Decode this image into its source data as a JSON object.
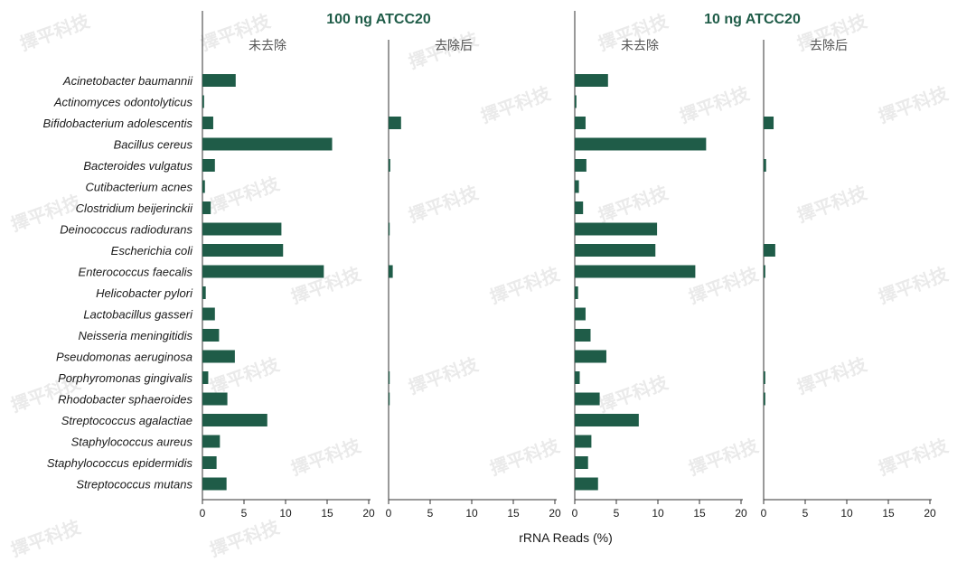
{
  "chart_data": {
    "type": "bar",
    "orientation": "horizontal",
    "xlabel": "rRNA Reads (%)",
    "xlim": [
      0,
      20
    ],
    "xticks": [
      0,
      5,
      10,
      15,
      20
    ],
    "bar_color": "#1f5c48",
    "groups": [
      {
        "title": "100 ng ATCC20",
        "title_color": "#1f5c48"
      },
      {
        "title": "10 ng ATCC20",
        "title_color": "#1f5c48"
      }
    ],
    "categories": [
      "Acinetobacter baumannii",
      "Actinomyces odontolyticus",
      "Bifidobacterium adolescentis",
      "Bacillus cereus",
      "Bacteroides vulgatus",
      "Cutibacterium acnes",
      "Clostridium beijerinckii",
      "Deinococcus radiodurans",
      "Escherichia coli",
      "Enterococcus faecalis",
      "Helicobacter pylori",
      "Lactobacillus gasseri",
      "Neisseria meningitidis",
      "Pseudomonas aeruginosa",
      "Porphyromonas gingivalis",
      "Rhodobacter sphaeroides",
      "Streptococcus agalactiae",
      "Staphylococcus aureus",
      "Staphylococcus epidermidis",
      "Streptococcus mutans"
    ],
    "panels": [
      {
        "group": 0,
        "title": "未去除",
        "values": [
          4.0,
          0.2,
          1.3,
          15.6,
          1.5,
          0.3,
          1.0,
          9.5,
          9.7,
          14.6,
          0.4,
          1.5,
          2.0,
          3.9,
          0.7,
          3.0,
          7.8,
          2.1,
          1.7,
          2.9
        ]
      },
      {
        "group": 0,
        "title": "去除后",
        "values": [
          0,
          0,
          1.5,
          0,
          0.2,
          0,
          0,
          0.1,
          0,
          0.5,
          0,
          0,
          0,
          0,
          0.1,
          0.1,
          0,
          0,
          0,
          0
        ]
      },
      {
        "group": 1,
        "title": "未去除",
        "values": [
          4.0,
          0.2,
          1.3,
          15.8,
          1.4,
          0.5,
          1.0,
          9.9,
          9.7,
          14.5,
          0.4,
          1.3,
          1.9,
          3.8,
          0.6,
          3.0,
          7.7,
          2.0,
          1.6,
          2.8
        ]
      },
      {
        "group": 1,
        "title": "去除后",
        "values": [
          0,
          0,
          1.2,
          0,
          0.3,
          0,
          0,
          0,
          1.4,
          0.2,
          0,
          0,
          0,
          0,
          0.2,
          0.2,
          0,
          0,
          0,
          0
        ]
      }
    ]
  },
  "watermark": {
    "text": "擇平科技"
  }
}
